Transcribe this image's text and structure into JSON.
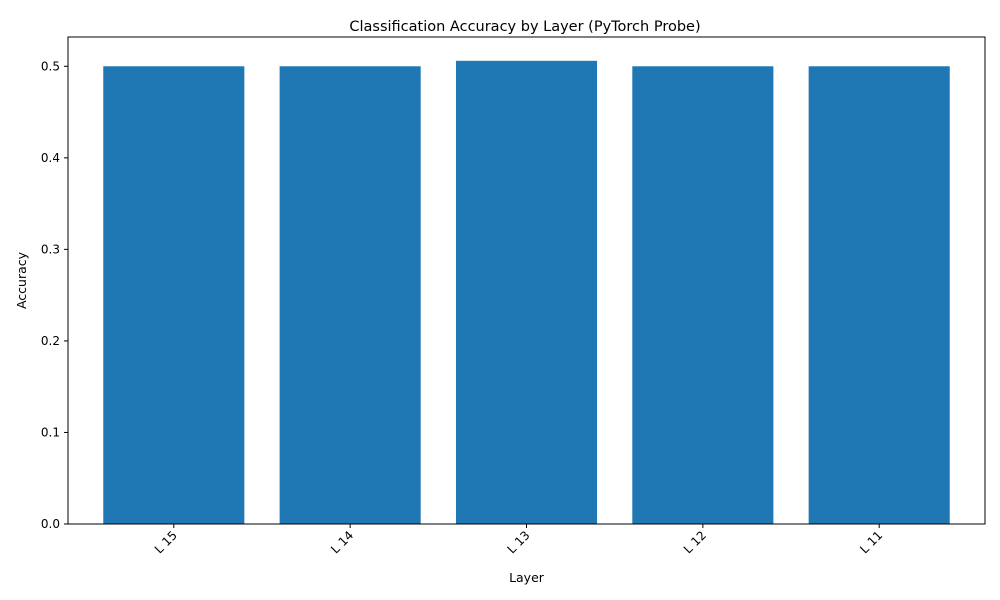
{
  "chart_data": {
    "type": "bar",
    "title": "Classification Accuracy by Layer (PyTorch Probe)",
    "xlabel": "Layer",
    "ylabel": "Accuracy",
    "categories": [
      "L 15",
      "L 14",
      "L 13",
      "L 12",
      "L 11"
    ],
    "values": [
      0.5,
      0.5,
      0.506,
      0.5,
      0.5
    ],
    "ylim": [
      0,
      0.532
    ],
    "yticks": [
      0.0,
      0.1,
      0.2,
      0.3,
      0.4,
      0.5
    ],
    "ytick_labels": [
      "0.0",
      "0.1",
      "0.2",
      "0.3",
      "0.4",
      "0.5"
    ],
    "grid": false,
    "legend": "none",
    "bar_color": "#1f77b4"
  }
}
